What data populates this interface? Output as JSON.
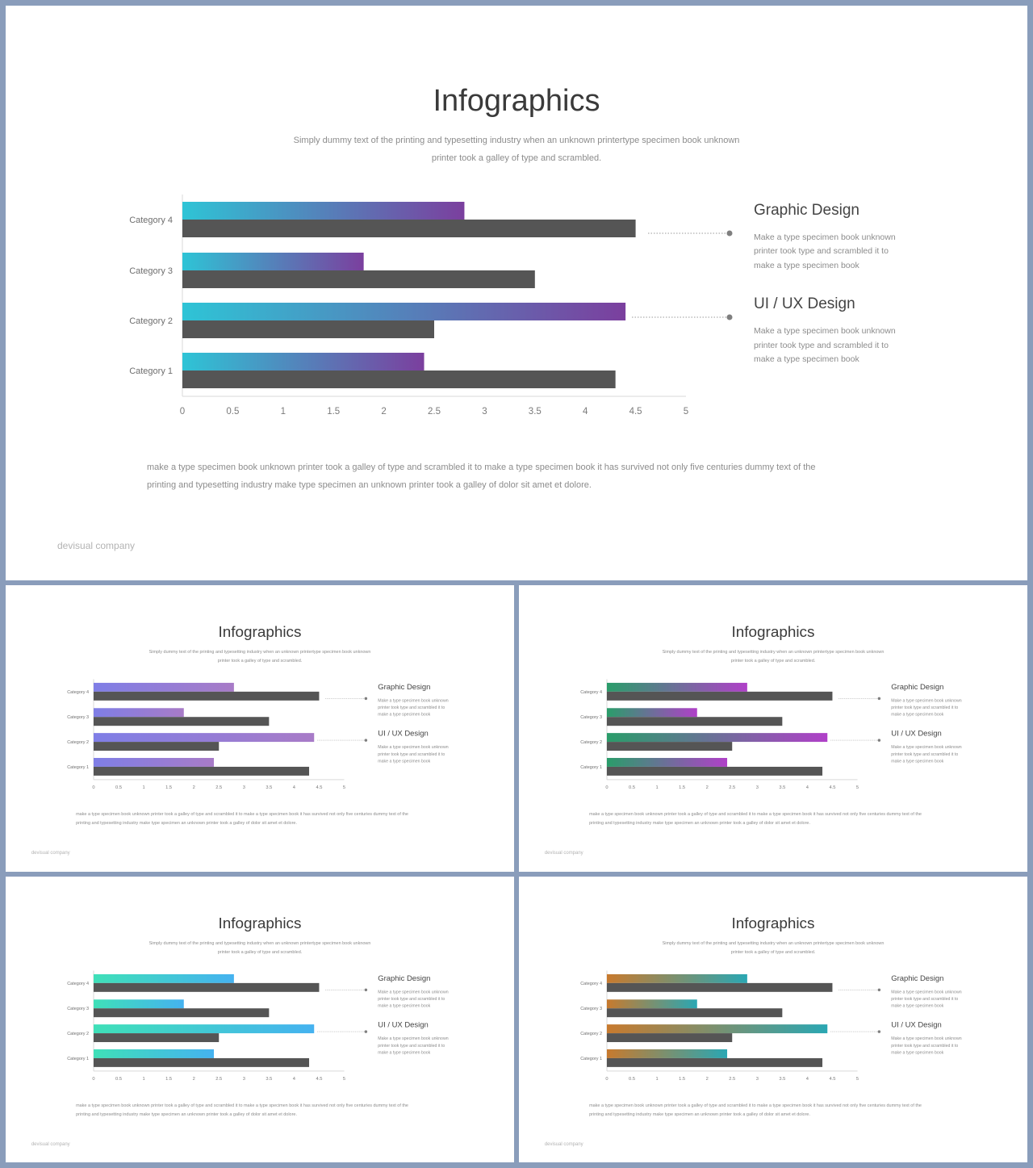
{
  "slide": {
    "title": "Infographics",
    "subtitle_line1": "Simply dummy text of the printing and typesetting industry when an unknown printertype specimen book unknown",
    "subtitle_line2": "printer took a galley of type and scrambled.",
    "body_line1": "make a type specimen book unknown printer took a galley of type and scrambled it to make a type specimen book it has survived not only five centuries dummy text of the",
    "body_line2": "printing and typesetting industry make type specimen an unknown printer took a galley of dolor sit amet et dolore.",
    "footer": "devisual company",
    "points": [
      {
        "title": "Graphic Design",
        "desc": [
          "Make a type specimen book unknown",
          "printer took type and scrambled it to",
          "make a type specimen book"
        ]
      },
      {
        "title": "UI / UX Design",
        "desc": [
          "Make a type specimen book unknown",
          "printer took type and scrambled it to",
          "make a type specimen book"
        ]
      }
    ]
  },
  "chart_data": {
    "type": "bar",
    "orientation": "horizontal",
    "categories": [
      "Category 1",
      "Category 2",
      "Category 3",
      "Category 4"
    ],
    "series": [
      {
        "values": [
          2.4,
          4.4,
          1.8,
          2.8
        ]
      },
      {
        "values": [
          4.3,
          2.5,
          3.5,
          4.5
        ]
      }
    ],
    "xlim": [
      0,
      5
    ],
    "xticks": [
      "0",
      "0.5",
      "1",
      "1.5",
      "2",
      "2.5",
      "3",
      "3.5",
      "4",
      "4.5",
      "5"
    ],
    "grid": false
  },
  "variants": [
    {
      "name": "purple-blue",
      "gradient": [
        "#2ec4d6",
        "#7b3f9e"
      ],
      "second_color": "#555555"
    },
    {
      "name": "violet",
      "gradient": [
        "#7f7ee6",
        "#a87bc7"
      ],
      "second_color": "#555555"
    },
    {
      "name": "green-magenta",
      "gradient": [
        "#2a9d6a",
        "#b040c8"
      ],
      "second_color": "#555555"
    },
    {
      "name": "teal-sky",
      "gradient": [
        "#3fe0b8",
        "#45b2f0"
      ],
      "second_color": "#555555"
    },
    {
      "name": "orange-teal",
      "gradient": [
        "#c87a2e",
        "#2aa7b3"
      ],
      "second_color": "#555555"
    }
  ]
}
